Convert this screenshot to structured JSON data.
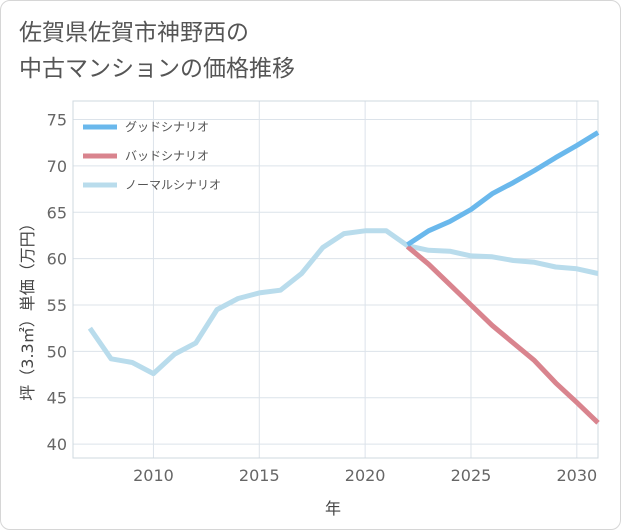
{
  "title_lines": [
    "佐賀県佐賀市神野西の",
    "中古マンションの価格推移"
  ],
  "colors": {
    "good": "#6ab8ec",
    "bad": "#d9848e",
    "normal": "#b9dcec",
    "grid": "#dce3ea"
  },
  "chart_data": {
    "type": "line",
    "xlabel": "年",
    "ylabel": "坪（3.3㎡）単価（万円）",
    "xlim": [
      2006.2,
      2031
    ],
    "ylim": [
      38.5,
      77
    ],
    "xticks": [
      2010,
      2015,
      2020,
      2025,
      2030
    ],
    "yticks": [
      40,
      45,
      50,
      55,
      60,
      65,
      70,
      75
    ],
    "legend_position": "top-left",
    "series": [
      {
        "name": "グッドシナリオ",
        "color": "#6ab8ec",
        "x": [
          2022,
          2023,
          2024,
          2025,
          2026,
          2027,
          2028,
          2029,
          2030,
          2031
        ],
        "y": [
          61.5,
          63.0,
          64.0,
          65.3,
          67.0,
          68.2,
          69.5,
          70.9,
          72.2,
          73.6
        ]
      },
      {
        "name": "バッドシナリオ",
        "color": "#d9848e",
        "x": [
          2022,
          2023,
          2024,
          2025,
          2026,
          2027,
          2028,
          2029,
          2030,
          2031
        ],
        "y": [
          61.3,
          59.4,
          57.2,
          55.0,
          52.8,
          50.9,
          49.0,
          46.6,
          44.5,
          42.3
        ]
      },
      {
        "name": "ノーマルシナリオ",
        "color": "#b9dcec",
        "x": [
          2007,
          2008,
          2009,
          2010,
          2011,
          2012,
          2013,
          2014,
          2015,
          2016,
          2017,
          2018,
          2019,
          2020,
          2021,
          2022,
          2023,
          2024,
          2025,
          2026,
          2027,
          2028,
          2029,
          2030,
          2031
        ],
        "y": [
          52.5,
          49.2,
          48.8,
          47.6,
          49.7,
          50.9,
          54.5,
          55.7,
          56.3,
          56.6,
          58.4,
          61.2,
          62.7,
          63.0,
          63.0,
          61.4,
          60.9,
          60.8,
          60.3,
          60.2,
          59.8,
          59.6,
          59.1,
          58.9,
          58.4
        ]
      }
    ]
  }
}
